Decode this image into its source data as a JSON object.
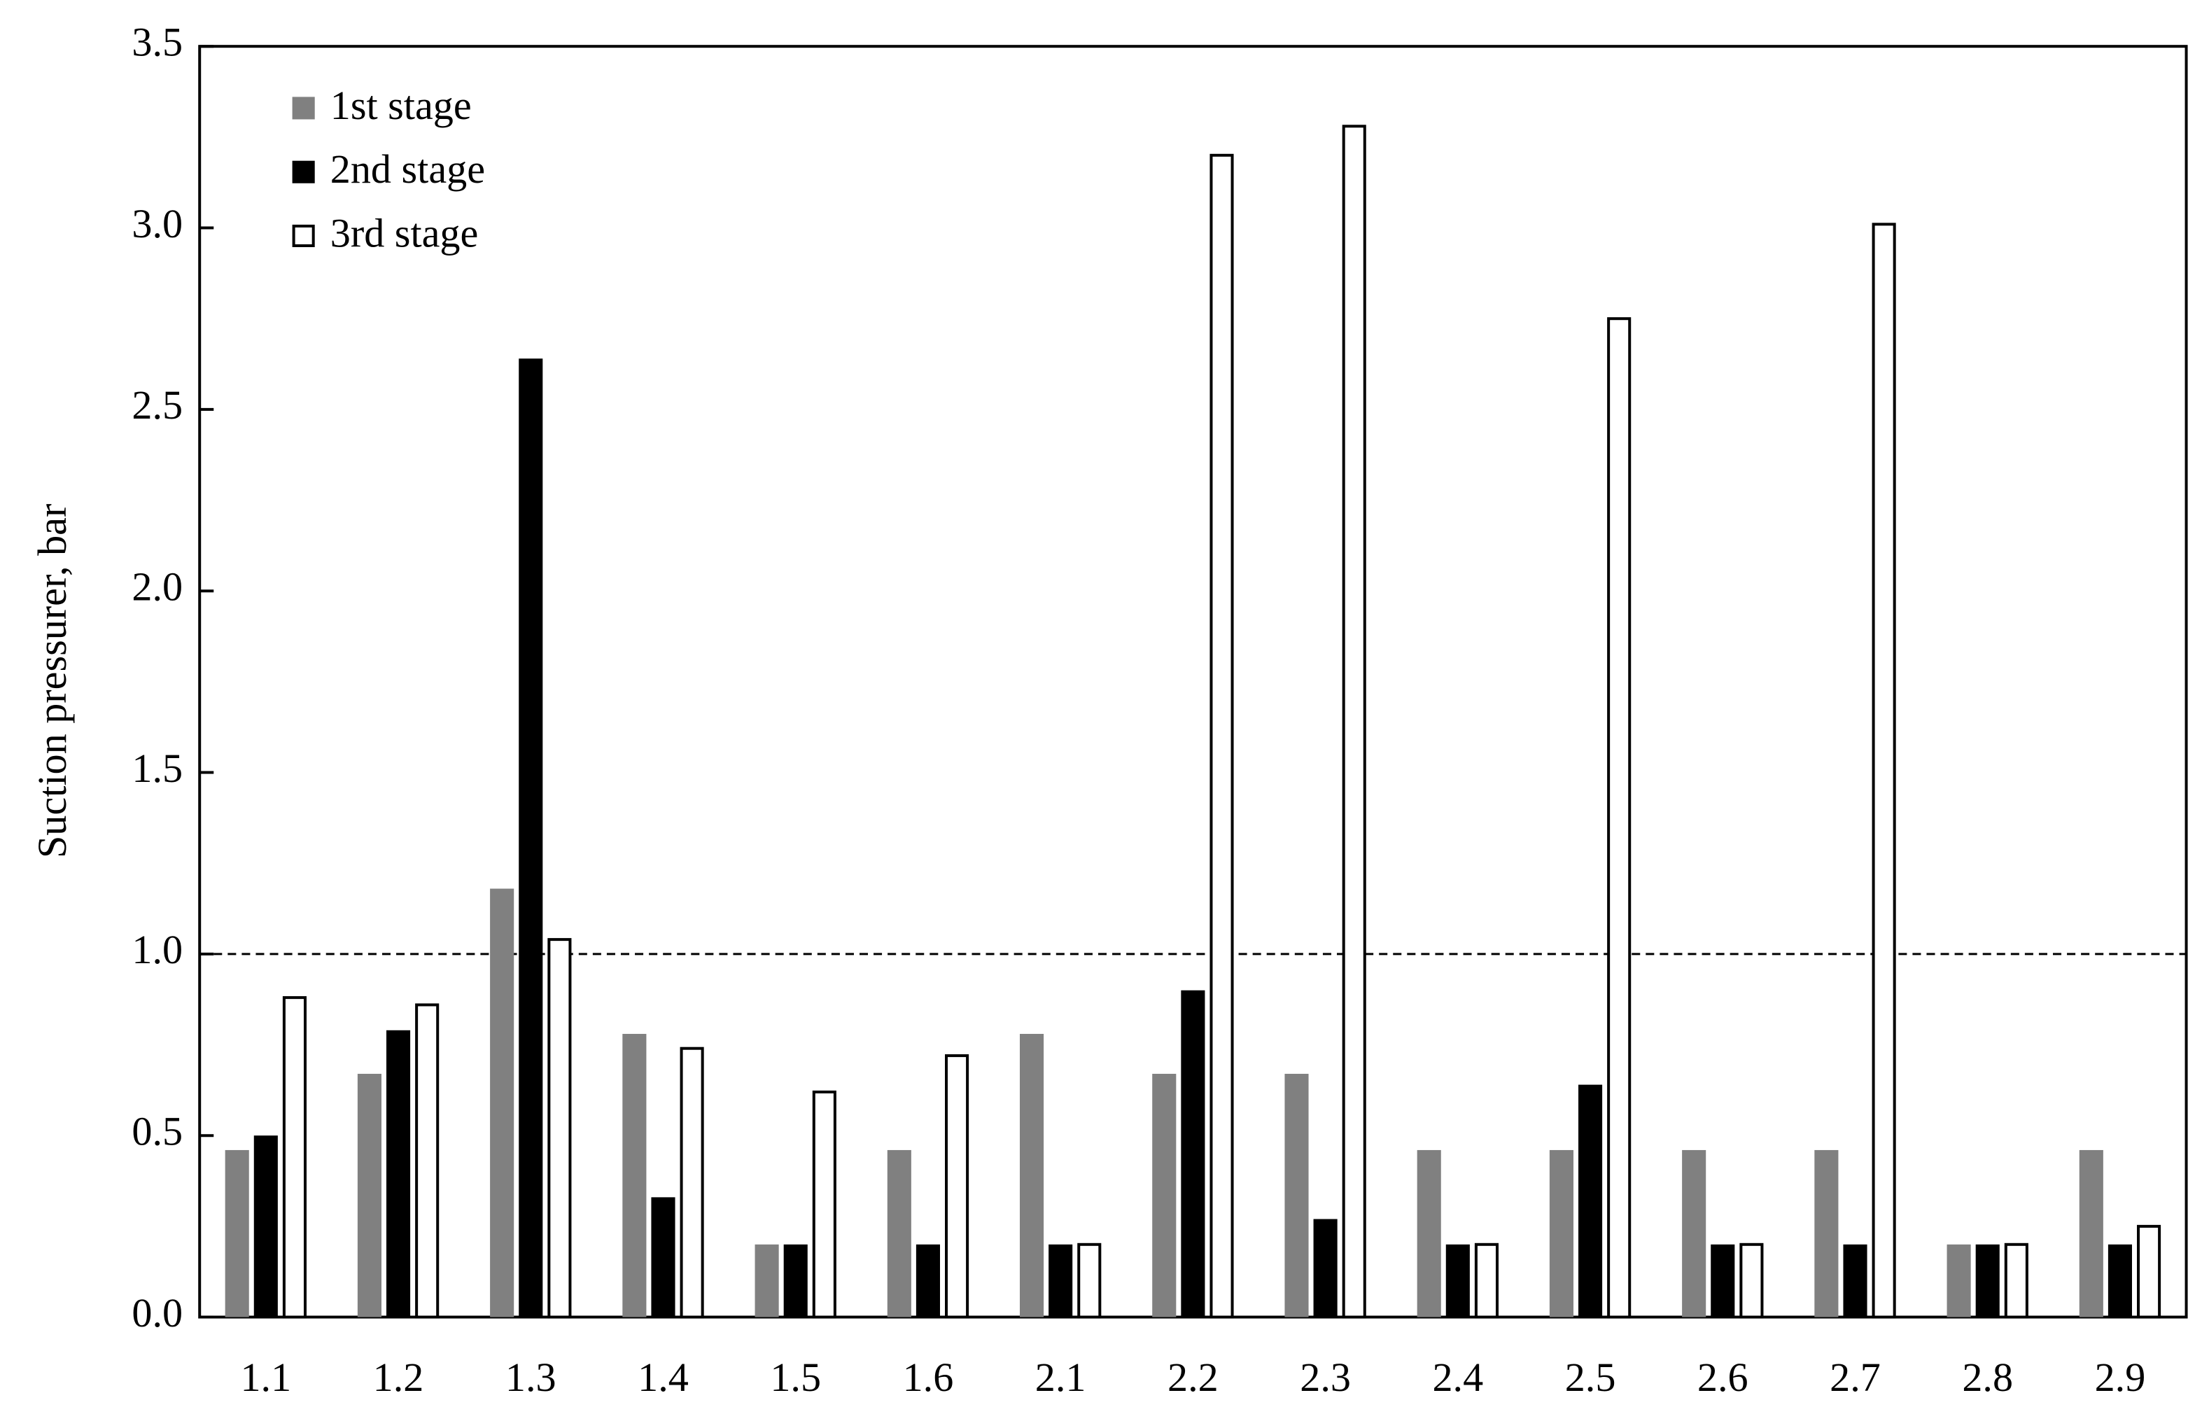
{
  "chart_data": {
    "type": "bar",
    "ylabel": "Suction pressurer, bar",
    "categories": [
      "1.1",
      "1.2",
      "1.3",
      "1.4",
      "1.5",
      "1.6",
      "2.1",
      "2.2",
      "2.3",
      "2.4",
      "2.5",
      "2.6",
      "2.7",
      "2.8",
      "2.9"
    ],
    "series": [
      {
        "name": "1st stage",
        "color": "#808080",
        "values": [
          0.46,
          0.67,
          1.18,
          0.78,
          0.2,
          0.46,
          0.78,
          0.67,
          0.67,
          0.46,
          0.46,
          0.46,
          0.46,
          0.2,
          0.46
        ]
      },
      {
        "name": "2nd stage",
        "color": "#000000",
        "values": [
          0.5,
          0.79,
          2.64,
          0.33,
          0.2,
          0.2,
          0.2,
          0.9,
          0.27,
          0.2,
          0.64,
          0.2,
          0.2,
          0.2,
          0.2
        ]
      },
      {
        "name": "3rd stage",
        "color": "#ffffff",
        "edgecolor": "#000000",
        "values": [
          0.88,
          0.86,
          1.04,
          0.74,
          0.62,
          0.72,
          0.2,
          3.2,
          3.28,
          0.2,
          2.75,
          0.2,
          3.01,
          0.2,
          0.25
        ]
      }
    ],
    "ylim": [
      0,
      3.5
    ],
    "yticks": [
      {
        "value": 0,
        "label": "0.0"
      },
      0.5,
      {
        "value": 1,
        "label": "1.0"
      },
      1.5,
      {
        "value": 2,
        "label": "2.0"
      },
      2.5,
      {
        "value": 3,
        "label": "3.0"
      },
      3.5
    ],
    "reference_line": 1.0,
    "legend": "upper left",
    "grid": false
  }
}
